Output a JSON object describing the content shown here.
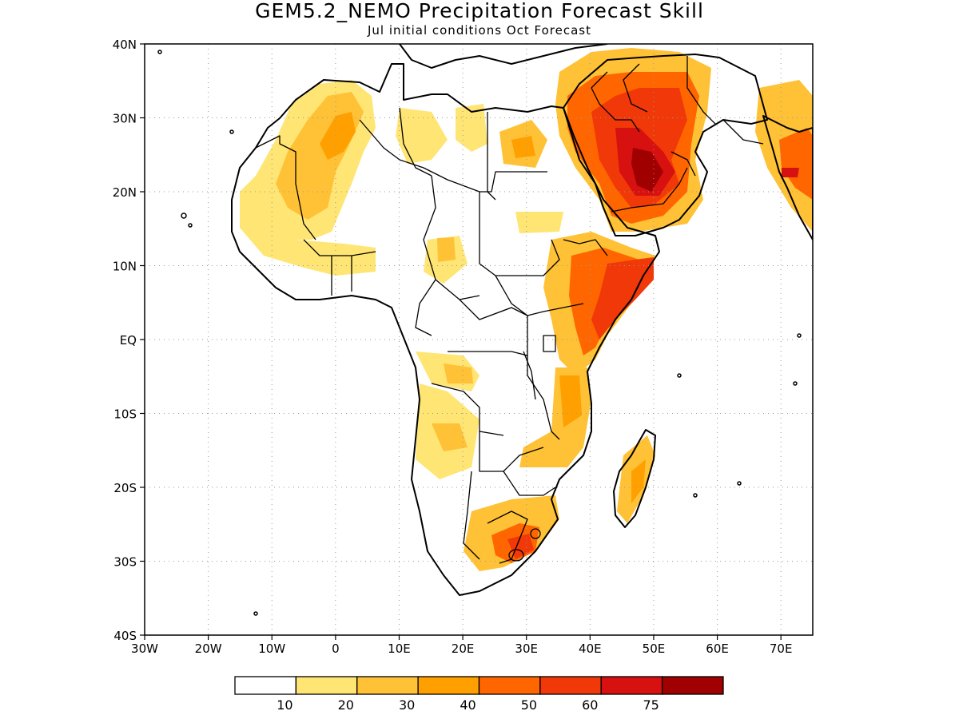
{
  "title": "GEM5.2_NEMO Precipitation Forecast Skill",
  "subtitle": "Jul initial conditions  Oct Forecast",
  "map": {
    "lon_range": [
      -30,
      75
    ],
    "lat_range": [
      -40,
      40
    ],
    "lon_ticks": [
      {
        "value": -30,
        "label": "30W"
      },
      {
        "value": -20,
        "label": "20W"
      },
      {
        "value": -10,
        "label": "10W"
      },
      {
        "value": 0,
        "label": "0"
      },
      {
        "value": 10,
        "label": "10E"
      },
      {
        "value": 20,
        "label": "20E"
      },
      {
        "value": 30,
        "label": "30E"
      },
      {
        "value": 40,
        "label": "40E"
      },
      {
        "value": 50,
        "label": "50E"
      },
      {
        "value": 60,
        "label": "60E"
      },
      {
        "value": 70,
        "label": "70E"
      }
    ],
    "lat_ticks": [
      {
        "value": 40,
        "label": "40N"
      },
      {
        "value": 30,
        "label": "30N"
      },
      {
        "value": 20,
        "label": "20N"
      },
      {
        "value": 10,
        "label": "10N"
      },
      {
        "value": 0,
        "label": "EQ"
      },
      {
        "value": -10,
        "label": "10S"
      },
      {
        "value": -20,
        "label": "20S"
      },
      {
        "value": -30,
        "label": "30S"
      },
      {
        "value": -40,
        "label": "40S"
      }
    ],
    "grid": true,
    "colors": [
      "#ffffff",
      "#ffe574",
      "#ffc135",
      "#ffa000",
      "#ff6600",
      "#f03808",
      "#d71010",
      "#a00000"
    ]
  },
  "colorbar": {
    "labels": [
      "10",
      "20",
      "30",
      "40",
      "50",
      "60",
      "75"
    ]
  }
}
